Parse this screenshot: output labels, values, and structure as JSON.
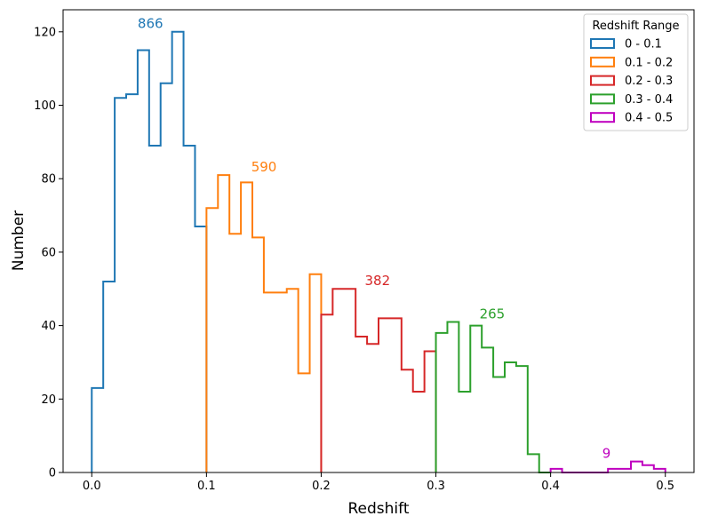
{
  "chart_data": {
    "type": "step-histogram",
    "xlabel": "Redshift",
    "ylabel": "Number",
    "xlim": [
      -0.025,
      0.525
    ],
    "ylim": [
      0,
      126
    ],
    "x_ticks": [
      0.0,
      0.1,
      0.2,
      0.3,
      0.4,
      0.5
    ],
    "x_tick_labels": [
      "0.0",
      "0.1",
      "0.2",
      "0.3",
      "0.4",
      "0.5"
    ],
    "y_ticks": [
      0,
      20,
      40,
      60,
      80,
      100,
      120
    ],
    "y_tick_labels": [
      "0",
      "20",
      "40",
      "60",
      "80",
      "100",
      "120"
    ],
    "legend": {
      "title": "Redshift Range",
      "location": "top-right"
    },
    "series": [
      {
        "name": "0 - 0.1",
        "color": "#1f77b4",
        "bin_edges": [
          0.0,
          0.01,
          0.02,
          0.03,
          0.04,
          0.05,
          0.06,
          0.07,
          0.08,
          0.09,
          0.1
        ],
        "counts": [
          23,
          52,
          102,
          103,
          115,
          89,
          106,
          120,
          89,
          67
        ],
        "total_label": "866",
        "label_at": [
          0.04,
          121
        ]
      },
      {
        "name": "0.1 - 0.2",
        "color": "#ff7f0e",
        "bin_edges": [
          0.1,
          0.11,
          0.12,
          0.13,
          0.14,
          0.15,
          0.16,
          0.17,
          0.18,
          0.19,
          0.2
        ],
        "counts": [
          72,
          81,
          65,
          79,
          64,
          49,
          49,
          50,
          27,
          54
        ],
        "total_label": "590",
        "label_at": [
          0.139,
          82
        ]
      },
      {
        "name": "0.2 - 0.3",
        "color": "#d62728",
        "bin_edges": [
          0.2,
          0.21,
          0.22,
          0.23,
          0.24,
          0.25,
          0.26,
          0.27,
          0.28,
          0.29,
          0.3
        ],
        "counts": [
          43,
          50,
          50,
          37,
          35,
          42,
          42,
          28,
          22,
          33
        ],
        "total_label": "382",
        "label_at": [
          0.238,
          51
        ]
      },
      {
        "name": "0.3 - 0.4",
        "color": "#2ca02c",
        "bin_edges": [
          0.3,
          0.31,
          0.32,
          0.33,
          0.34,
          0.35,
          0.36,
          0.37,
          0.38,
          0.39,
          0.4
        ],
        "counts": [
          38,
          41,
          22,
          40,
          34,
          26,
          30,
          29,
          5,
          0
        ],
        "total_label": "265",
        "label_at": [
          0.338,
          42
        ]
      },
      {
        "name": "0.4 - 0.5",
        "color": "#bf00bf",
        "bin_edges": [
          0.4,
          0.41,
          0.42,
          0.43,
          0.44,
          0.45,
          0.46,
          0.47,
          0.48,
          0.49,
          0.5
        ],
        "counts": [
          1,
          0,
          0,
          0,
          0,
          1,
          1,
          3,
          2,
          1
        ],
        "total_label": "9",
        "label_at": [
          0.445,
          4
        ]
      }
    ]
  }
}
